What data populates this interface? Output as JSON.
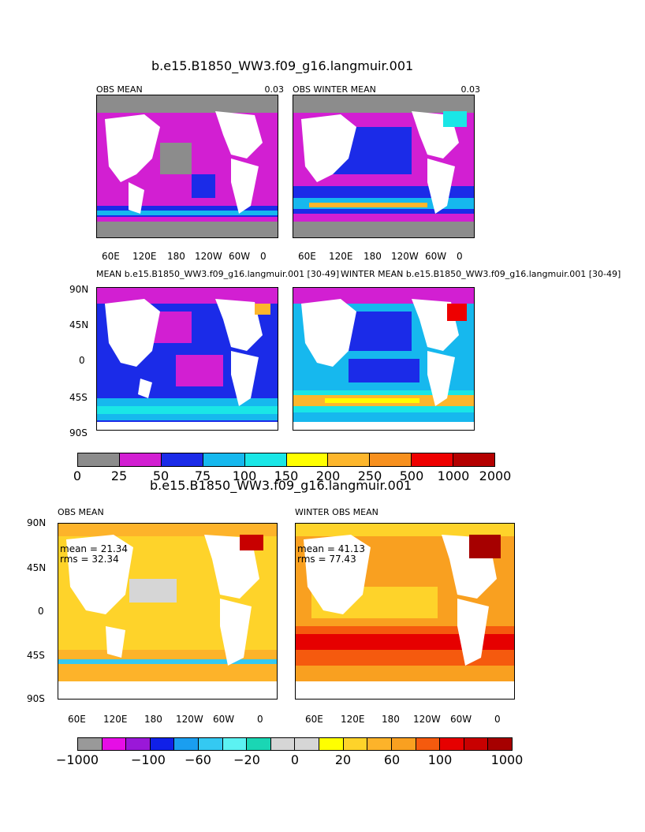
{
  "top": {
    "title": "b.e15.B1850_WW3.f09_g16.langmuir.001",
    "panel_a_title": "OBS MEAN",
    "panel_a_right": "0.03",
    "panel_b_title": "OBS WINTER MEAN",
    "panel_b_right": "0.03",
    "panel_c_title": "MEAN b.e15.B1850_WW3.f09_g16.langmuir.001 [30-49]",
    "panel_d_title": "WINTER MEAN b.e15.B1850_WW3.f09_g16.langmuir.001 [30-49]",
    "lat_ticks": [
      "90N",
      "45N",
      "0",
      "45S",
      "90S"
    ],
    "lon_ticks": [
      "60E",
      "120E",
      "180",
      "120W",
      "60W",
      "0"
    ],
    "colorbar": {
      "labels": [
        "0",
        "25",
        "50",
        "75",
        "100",
        "150",
        "200",
        "250",
        "500",
        "1000",
        "2000"
      ],
      "colors": [
        "#8c8c8c",
        "#d21fd2",
        "#1b2be8",
        "#16b8ee",
        "#1ae6e6",
        "#ffff00",
        "#fdb62c",
        "#f7901e",
        "#ee0000",
        "#b40000"
      ]
    }
  },
  "bottom": {
    "title": "b.e15.B1850_WW3.f09_g16.langmuir.001",
    "panel_e_title": "OBS MEAN",
    "panel_f_title": "WINTER OBS MEAN",
    "panel_e_mean": "mean = 21.34",
    "panel_e_rms": "rms = 32.34",
    "panel_f_mean": "mean = 41.13",
    "panel_f_rms": "rms = 77.43",
    "lat_ticks": [
      "90N",
      "45N",
      "0",
      "45S",
      "90S"
    ],
    "lon_ticks": [
      "60E",
      "120E",
      "180",
      "120W",
      "60W",
      "0"
    ],
    "colorbar": {
      "labels": [
        "−1000",
        "−100",
        "−60",
        "−20",
        "0",
        "20",
        "60",
        "100",
        "1000"
      ],
      "colors": [
        "#999999",
        "#e60ee6",
        "#9a18d8",
        "#1020e8",
        "#1a9ef0",
        "#34c9f2",
        "#5cf2f2",
        "#1ad6b4",
        "#d6d6d6",
        "#d6d6d6",
        "#ffff00",
        "#fed32a",
        "#fdb32a",
        "#f9a020",
        "#f55a0e",
        "#e60000",
        "#c80000",
        "#a60000"
      ]
    }
  }
}
